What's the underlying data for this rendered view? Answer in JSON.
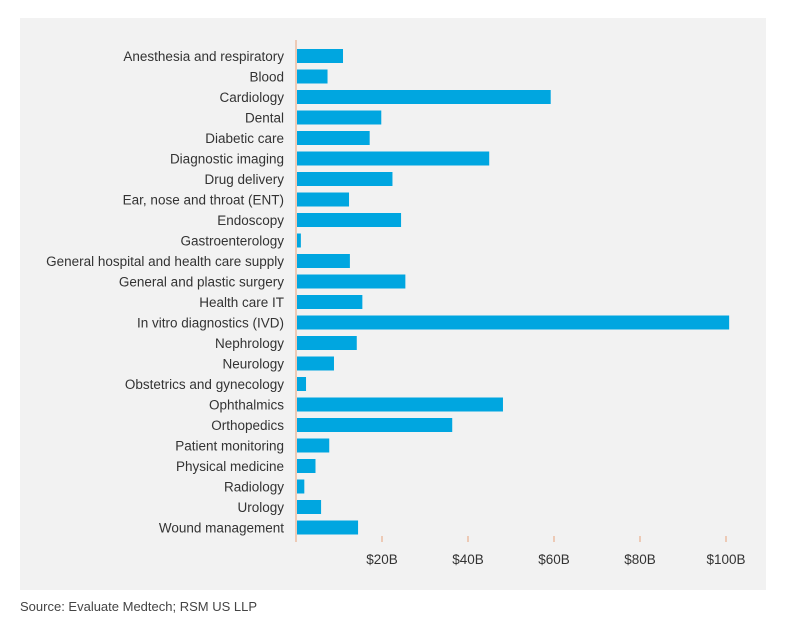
{
  "chart_data": {
    "type": "bar",
    "orientation": "horizontal",
    "categories": [
      "Anesthesia and respiratory",
      "Blood",
      "Cardiology",
      "Dental",
      "Diabetic care",
      "Diagnostic imaging",
      "Drug delivery",
      "Ear, nose and throat (ENT)",
      "Endoscopy",
      "Gastroenterology",
      "General hospital and health care supply",
      "General and plastic surgery",
      "Health care IT",
      "In vitro diagnostics (IVD)",
      "Nephrology",
      "Neurology",
      "Obstetrics and gynecology",
      "Ophthalmics",
      "Orthopedics",
      "Patient monitoring",
      "Physical medicine",
      "Radiology",
      "Urology",
      "Wound management"
    ],
    "values": [
      10.7,
      7.1,
      59.0,
      19.6,
      16.9,
      44.7,
      22.2,
      12.1,
      24.2,
      0.9,
      12.3,
      25.2,
      15.2,
      100.5,
      13.9,
      8.6,
      2.1,
      47.9,
      36.1,
      7.5,
      4.3,
      1.7,
      5.6,
      14.2
    ],
    "ticks": [
      20,
      40,
      60,
      80,
      100
    ],
    "tick_labels": [
      "$20B",
      "$40B",
      "$60B",
      "$80B",
      "$100B"
    ],
    "xlim": [
      0,
      105
    ],
    "title": "",
    "xlabel": "",
    "ylabel": "",
    "grid": false,
    "bar_color": "#00a6e0",
    "axis_color": "#e8a27a"
  },
  "source_note": "Source: Evaluate Medtech; RSM US LLP"
}
